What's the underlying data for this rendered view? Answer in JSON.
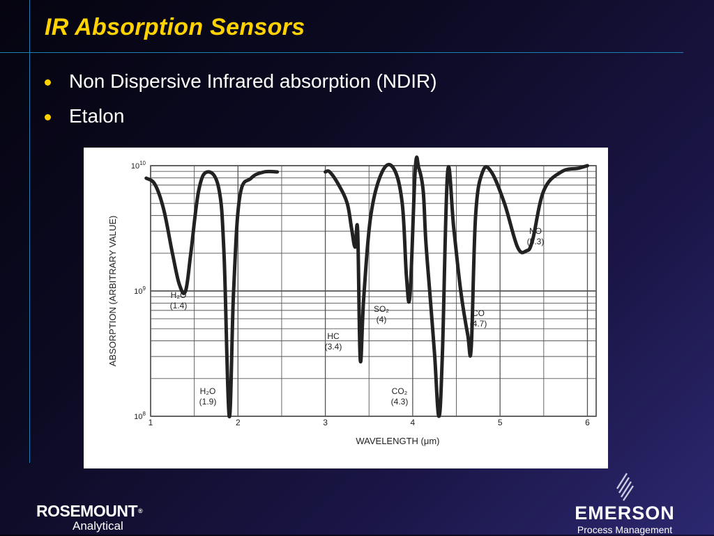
{
  "slide": {
    "title": "IR Absorption Sensors",
    "bullets": [
      "Non Dispersive Infrared absorption (NDIR)",
      "Etalon"
    ]
  },
  "footer": {
    "left_logo": {
      "name": "ROSEMOUNT",
      "reg": "®",
      "sub": "Analytical"
    },
    "right_logo": {
      "name": "EMERSON",
      "sub": "Process Management"
    }
  },
  "colors": {
    "title": "#ffd200",
    "rule": "#1e7fb0",
    "curve": "#222222",
    "grid": "#555555"
  },
  "chart_data": {
    "type": "line",
    "title": "",
    "xlabel": "WAVELENGTH (μm)",
    "ylabel": "ABSORPTION (ARBITRARY VALUE)",
    "xlim": [
      1,
      6.1
    ],
    "ylim": [
      8,
      10
    ],
    "yscale": "log",
    "x_ticks": [
      {
        "v": 1,
        "label": "1"
      },
      {
        "v": 2,
        "label": "2"
      },
      {
        "v": 3,
        "label": "3"
      },
      {
        "v": 4,
        "label": "4"
      },
      {
        "v": 5,
        "label": "5"
      },
      {
        "v": 6,
        "label": "6"
      }
    ],
    "y_ticks": [
      {
        "v": 10,
        "base": "10",
        "exp": "10"
      },
      {
        "v": 9,
        "base": "10",
        "exp": "9"
      },
      {
        "v": 8,
        "base": "10",
        "exp": "8"
      }
    ],
    "grid": true,
    "series": [
      {
        "x": [
          0.95,
          1.05,
          1.15,
          1.25,
          1.33,
          1.4,
          1.46,
          1.55,
          1.65,
          1.78,
          1.84,
          1.9,
          1.95,
          2.02,
          2.15,
          2.3,
          2.45
        ],
        "y": [
          9.9,
          9.85,
          9.65,
          9.3,
          9.05,
          9.0,
          9.3,
          9.8,
          9.95,
          9.82,
          9.3,
          8.0,
          9.0,
          9.75,
          9.9,
          9.95,
          9.95
        ]
      },
      {
        "x": [
          3.0,
          3.05,
          3.15,
          3.25,
          3.3,
          3.34,
          3.37,
          3.4,
          3.44,
          3.52,
          3.65,
          3.78,
          3.88,
          3.93,
          3.97,
          4.03,
          4.07,
          4.12,
          4.15,
          4.2,
          4.25,
          4.3,
          4.34,
          4.4,
          4.47,
          4.55,
          4.63,
          4.67,
          4.72,
          4.8,
          4.9,
          5.05,
          5.2,
          5.3,
          5.37,
          5.5,
          5.7,
          5.9,
          6.0
        ],
        "y": [
          9.95,
          9.95,
          9.85,
          9.7,
          9.5,
          9.35,
          9.48,
          8.45,
          8.95,
          9.6,
          9.95,
          9.98,
          9.7,
          9.1,
          8.98,
          9.98,
          9.98,
          9.8,
          9.4,
          8.95,
          8.5,
          8.0,
          8.5,
          9.95,
          9.5,
          9.0,
          8.65,
          8.55,
          9.6,
          9.95,
          9.95,
          9.7,
          9.35,
          9.32,
          9.4,
          9.8,
          9.95,
          9.98,
          10.0
        ]
      }
    ],
    "annotations": [
      {
        "label": "H₂O",
        "sub": "(1.4)"
      },
      {
        "label": "H₂O",
        "sub": "(1.9)"
      },
      {
        "label": "HC",
        "sub": "(3.4)"
      },
      {
        "label": "SO₂",
        "sub": "(4)"
      },
      {
        "label": "CO₂",
        "sub": "(4.3)"
      },
      {
        "label": "CO",
        "sub": "(4.7)"
      },
      {
        "label": "NO",
        "sub": "(5.3)"
      }
    ]
  }
}
